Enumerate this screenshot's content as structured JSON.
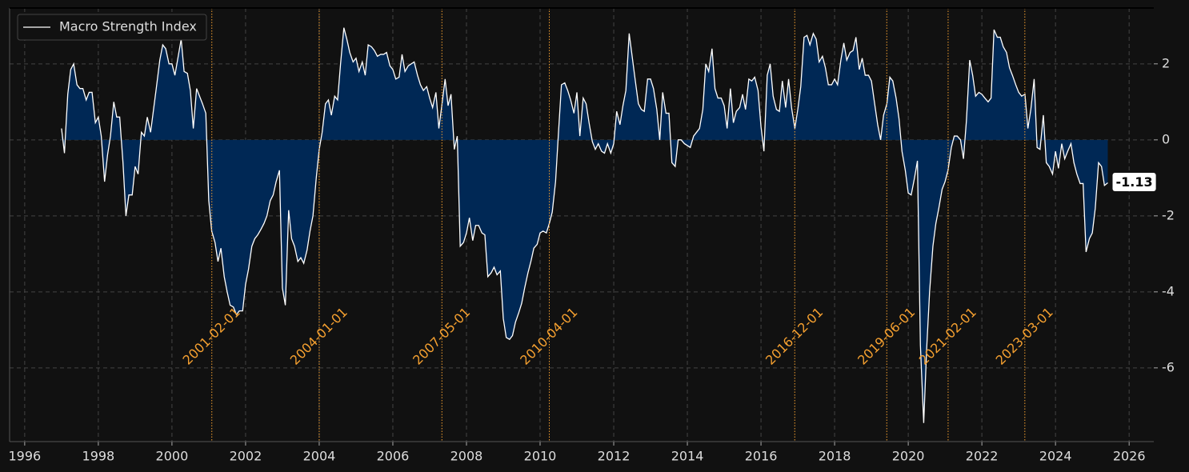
{
  "chart_data": {
    "type": "area-line",
    "series": [
      {
        "name": "Macro Strength Index",
        "color": "#ffffff",
        "fill": "#002855",
        "values": [
          0.3,
          -0.35,
          1.2,
          1.85,
          2.0,
          1.45,
          1.35,
          1.35,
          1.05,
          1.25,
          1.25,
          0.45,
          0.6,
          0.1,
          -1.1,
          -0.4,
          0.1,
          1.0,
          0.6,
          0.6,
          -0.6,
          -2.0,
          -1.45,
          -1.45,
          -0.7,
          -0.9,
          0.2,
          0.1,
          0.6,
          0.2,
          0.8,
          1.4,
          2.1,
          2.5,
          2.4,
          2.0,
          2.0,
          1.7,
          2.2,
          2.65,
          1.8,
          1.75,
          1.3,
          0.3,
          1.35,
          1.15,
          0.95,
          0.7,
          -1.6,
          -2.4,
          -2.7,
          -3.2,
          -2.85,
          -3.6,
          -4.0,
          -4.35,
          -4.4,
          -4.6,
          -4.5,
          -4.5,
          -3.8,
          -3.4,
          -2.8,
          -2.6,
          -2.5,
          -2.35,
          -2.2,
          -2.0,
          -1.6,
          -1.45,
          -1.1,
          -0.8,
          -3.9,
          -4.35,
          -1.85,
          -2.6,
          -2.8,
          -3.2,
          -3.1,
          -3.25,
          -2.9,
          -2.4,
          -2.0,
          -1.0,
          -0.25,
          0.2,
          0.95,
          1.05,
          0.65,
          1.15,
          1.05,
          2.0,
          2.95,
          2.65,
          2.3,
          2.05,
          2.15,
          1.8,
          2.05,
          1.7,
          2.5,
          2.45,
          2.35,
          2.2,
          2.25,
          2.25,
          2.3,
          1.95,
          1.85,
          1.6,
          1.65,
          2.25,
          1.8,
          1.95,
          2.0,
          2.05,
          1.7,
          1.45,
          1.3,
          1.4,
          1.1,
          0.85,
          1.25,
          0.3,
          0.9,
          1.6,
          0.9,
          1.2,
          -0.25,
          0.1,
          -2.8,
          -2.7,
          -2.45,
          -2.05,
          -2.65,
          -2.25,
          -2.25,
          -2.45,
          -2.5,
          -3.6,
          -3.5,
          -3.35,
          -3.55,
          -3.45,
          -4.7,
          -5.2,
          -5.25,
          -5.15,
          -4.8,
          -4.55,
          -4.3,
          -3.9,
          -3.5,
          -3.2,
          -2.85,
          -2.75,
          -2.45,
          -2.4,
          -2.45,
          -2.2,
          -1.9,
          -1.1,
          0.2,
          1.45,
          1.5,
          1.3,
          1.05,
          0.7,
          1.25,
          0.1,
          1.1,
          0.95,
          0.45,
          -0.05,
          -0.25,
          -0.1,
          -0.3,
          -0.35,
          -0.1,
          -0.35,
          -0.1,
          0.75,
          0.4,
          0.9,
          1.3,
          2.8,
          2.2,
          1.6,
          0.95,
          0.8,
          0.75,
          1.6,
          1.6,
          1.35,
          0.8,
          0.0,
          1.25,
          0.7,
          0.7,
          -0.6,
          -0.7,
          0.0,
          0.0,
          -0.1,
          -0.15,
          -0.2,
          0.1,
          0.2,
          0.3,
          0.8,
          2.0,
          1.8,
          2.4,
          1.35,
          1.1,
          1.1,
          0.9,
          0.3,
          1.35,
          0.45,
          0.75,
          0.85,
          1.2,
          0.8,
          1.6,
          1.55,
          1.65,
          1.3,
          0.35,
          -0.3,
          1.7,
          2.0,
          1.15,
          0.8,
          0.75,
          1.55,
          0.85,
          1.6,
          0.85,
          0.3,
          0.8,
          1.4,
          2.7,
          2.75,
          2.5,
          2.8,
          2.65,
          2.05,
          2.2,
          1.9,
          1.45,
          1.45,
          1.6,
          1.45,
          2.1,
          2.55,
          2.1,
          2.3,
          2.35,
          2.7,
          1.85,
          2.15,
          1.7,
          1.7,
          1.55,
          1.0,
          0.4,
          0.0,
          0.65,
          0.95,
          1.65,
          1.55,
          1.1,
          0.55,
          -0.3,
          -0.8,
          -1.4,
          -1.45,
          -1.0,
          -0.55,
          -5.4,
          -7.45,
          -5.5,
          -4.0,
          -2.8,
          -2.2,
          -1.8,
          -1.3,
          -1.1,
          -0.8,
          -0.2,
          0.1,
          0.1,
          0.0,
          -0.5,
          0.5,
          2.1,
          1.7,
          1.15,
          1.25,
          1.2,
          1.1,
          1.0,
          1.1,
          2.9,
          2.7,
          2.7,
          2.45,
          2.3,
          1.9,
          1.7,
          1.45,
          1.25,
          1.15,
          1.2,
          0.3,
          0.8,
          1.6,
          -0.2,
          -0.25,
          0.65,
          -0.6,
          -0.7,
          -0.9,
          -0.3,
          -0.75,
          -0.1,
          -0.5,
          -0.3,
          -0.1,
          -0.6,
          -0.9,
          -1.15,
          -1.15,
          -2.95,
          -2.6,
          -2.45,
          -1.8,
          -0.6,
          -0.7,
          -1.2,
          -1.13
        ]
      }
    ],
    "x": [
      1997.0,
      1997.08,
      1997.17,
      1997.25,
      1997.33,
      1997.42,
      1997.5,
      1997.58,
      1997.67,
      1997.75,
      1997.83,
      1997.92,
      1998.0,
      1998.08,
      1998.17,
      1998.25,
      1998.33,
      1998.42,
      1998.5,
      1998.58,
      1998.67,
      1998.75,
      1998.83,
      1998.92,
      1999.0,
      1999.08,
      1999.17,
      1999.25,
      1999.33,
      1999.42,
      1999.5,
      1999.58,
      1999.67,
      1999.75,
      1999.83,
      1999.92,
      2000.0,
      2000.08,
      2000.17,
      2000.25,
      2000.33,
      2000.42,
      2000.5,
      2000.58,
      2000.67,
      2000.75,
      2000.83,
      2000.92,
      2001.0,
      2001.08,
      2001.17,
      2001.25,
      2001.33,
      2001.42,
      2001.5,
      2001.58,
      2001.67,
      2001.75,
      2001.83,
      2001.92,
      2002.0,
      2002.08,
      2002.17,
      2002.25,
      2002.33,
      2002.42,
      2002.5,
      2002.58,
      2002.67,
      2002.75,
      2002.83,
      2002.92,
      2003.0,
      2003.08,
      2003.17,
      2003.25,
      2003.33,
      2003.42,
      2003.5,
      2003.58,
      2003.67,
      2003.75,
      2003.83,
      2003.92,
      2004.0,
      2004.08,
      2004.17,
      2004.25,
      2004.33,
      2004.42,
      2004.5,
      2004.58,
      2004.67,
      2004.75,
      2004.83,
      2004.92,
      2005.0,
      2005.08,
      2005.17,
      2005.25,
      2005.33,
      2005.42,
      2005.5,
      2005.58,
      2005.67,
      2005.75,
      2005.83,
      2005.92,
      2006.0,
      2006.08,
      2006.17,
      2006.25,
      2006.33,
      2006.42,
      2006.5,
      2006.58,
      2006.67,
      2006.75,
      2006.83,
      2006.92,
      2007.0,
      2007.08,
      2007.17,
      2007.25,
      2007.33,
      2007.42,
      2007.5,
      2007.58,
      2007.67,
      2007.75,
      2007.83,
      2007.92,
      2008.0,
      2008.08,
      2008.17,
      2008.25,
      2008.33,
      2008.42,
      2008.5,
      2008.58,
      2008.67,
      2008.75,
      2008.83,
      2008.92,
      2009.0,
      2009.08,
      2009.17,
      2009.25,
      2009.33,
      2009.42,
      2009.5,
      2009.58,
      2009.67,
      2009.75,
      2009.83,
      2009.92,
      2010.0,
      2010.08,
      2010.17,
      2010.25,
      2010.33,
      2010.42,
      2010.5,
      2010.58,
      2010.67,
      2010.75,
      2010.83,
      2010.92,
      2011.0,
      2011.08,
      2011.17,
      2011.25,
      2011.33,
      2011.42,
      2011.5,
      2011.58,
      2011.67,
      2011.75,
      2011.83,
      2011.92,
      2012.0,
      2012.08,
      2012.17,
      2012.25,
      2012.33,
      2012.42,
      2012.5,
      2012.58,
      2012.67,
      2012.75,
      2012.83,
      2012.92,
      2013.0,
      2013.08,
      2013.17,
      2013.25,
      2013.33,
      2013.42,
      2013.5,
      2013.58,
      2013.67,
      2013.75,
      2013.83,
      2013.92,
      2014.0,
      2014.08,
      2014.17,
      2014.25,
      2014.33,
      2014.42,
      2014.5,
      2014.58,
      2014.67,
      2014.75,
      2014.83,
      2014.92,
      2015.0,
      2015.08,
      2015.17,
      2015.25,
      2015.33,
      2015.42,
      2015.5,
      2015.58,
      2015.67,
      2015.75,
      2015.83,
      2015.92,
      2016.0,
      2016.08,
      2016.17,
      2016.25,
      2016.33,
      2016.42,
      2016.5,
      2016.58,
      2016.67,
      2016.75,
      2016.83,
      2016.92,
      2017.0,
      2017.08,
      2017.17,
      2017.25,
      2017.33,
      2017.42,
      2017.5,
      2017.58,
      2017.67,
      2017.75,
      2017.83,
      2017.92,
      2018.0,
      2018.08,
      2018.17,
      2018.25,
      2018.33,
      2018.42,
      2018.5,
      2018.58,
      2018.67,
      2018.75,
      2018.83,
      2018.92,
      2019.0,
      2019.08,
      2019.17,
      2019.25,
      2019.33,
      2019.42,
      2019.5,
      2019.58,
      2019.67,
      2019.75,
      2019.83,
      2019.92,
      2020.0,
      2020.08,
      2020.17,
      2020.25,
      2020.33,
      2020.42,
      2020.5,
      2020.58,
      2020.67,
      2020.75,
      2020.83,
      2020.92,
      2021.0,
      2021.08,
      2021.17,
      2021.25,
      2021.33,
      2021.42,
      2021.5,
      2021.58,
      2021.67,
      2021.75,
      2021.83,
      2021.92,
      2022.0,
      2022.08,
      2022.17,
      2022.25,
      2022.33,
      2022.42,
      2022.5,
      2022.58,
      2022.67,
      2022.75,
      2022.83,
      2022.92,
      2023.0,
      2023.08,
      2023.17,
      2023.25,
      2023.33,
      2023.42,
      2023.5,
      2023.58,
      2023.67,
      2023.75,
      2023.83,
      2023.92,
      2024.0,
      2024.08,
      2024.17,
      2024.25,
      2024.33,
      2024.42,
      2024.5,
      2024.58,
      2024.67,
      2024.75,
      2024.83,
      2024.92,
      2025.0,
      2025.08,
      2025.17,
      2025.25,
      2025.33,
      2025.42
    ],
    "xlim": [
      1995.59,
      2026.67
    ],
    "xticks": [
      1996,
      1998,
      2000,
      2002,
      2004,
      2006,
      2008,
      2010,
      2012,
      2014,
      2016,
      2018,
      2020,
      2022,
      2024,
      2026
    ],
    "ylim": [
      -7.94,
      3.47
    ],
    "yticks": [
      -6,
      -4,
      -2,
      0,
      2
    ],
    "grid": true,
    "legend": "upper left",
    "events": [
      {
        "value": 2001.083,
        "label": "2001-02-01"
      },
      {
        "value": 2004.0,
        "label": "2004-01-01"
      },
      {
        "value": 2007.333,
        "label": "2007-05-01"
      },
      {
        "value": 2010.25,
        "label": "2010-04-01"
      },
      {
        "value": 2016.917,
        "label": "2016-12-01"
      },
      {
        "value": 2019.417,
        "label": "2019-06-01"
      },
      {
        "value": 2021.083,
        "label": "2021-02-01"
      },
      {
        "value": 2023.167,
        "label": "2023-03-01"
      }
    ],
    "event_color": "#f5a030"
  }
}
